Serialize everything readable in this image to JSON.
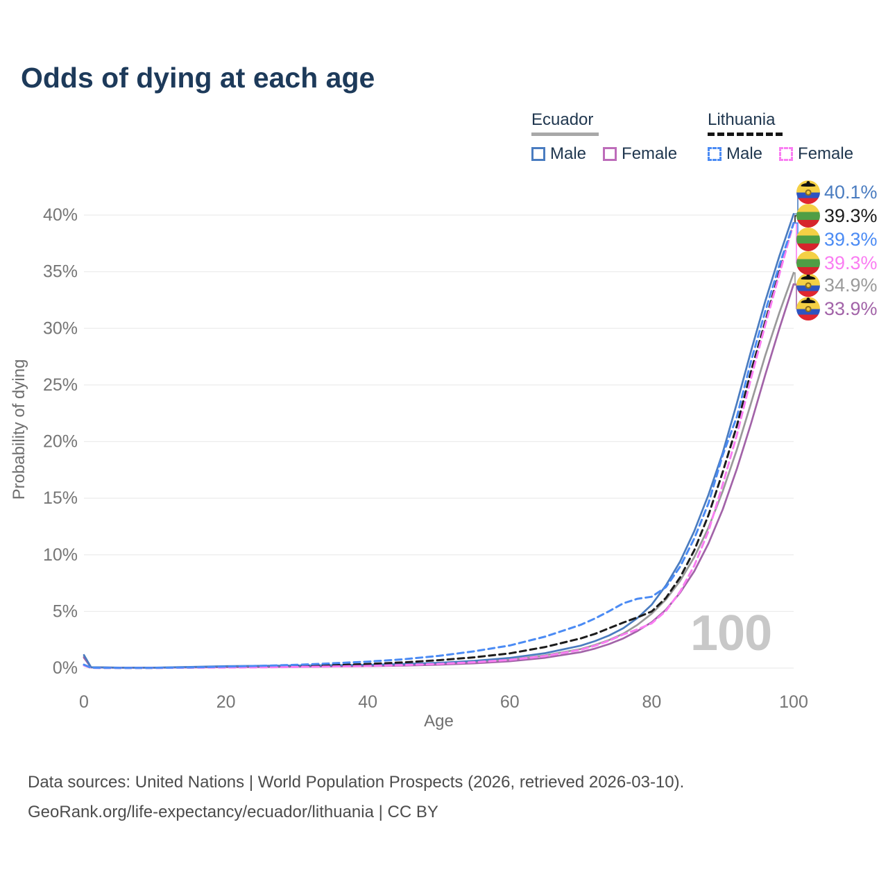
{
  "title": "Odds of dying at each age",
  "legend": {
    "groups": [
      {
        "country": "Ecuador",
        "line_style": "solid",
        "underline_color": "#a8a8a8",
        "items": [
          {
            "label": "Male",
            "color": "#4a7cc0"
          },
          {
            "label": "Female",
            "color": "#bd6cba"
          }
        ]
      },
      {
        "country": "Lithuania",
        "line_style": "dashed",
        "underline_color": "#141414",
        "items": [
          {
            "label": "Male",
            "color": "#4b8bf4"
          },
          {
            "label": "Female",
            "color": "#fa7df2"
          }
        ]
      }
    ]
  },
  "watermark": "100",
  "sources": {
    "line1": "Data sources: United Nations | World Population Prospects (2026, retrieved 2026-03-10).",
    "line2": "GeoRank.org/life-expectancy/ecuador/lithuania | CC BY"
  },
  "chart_data": {
    "type": "line",
    "title": "Odds of dying at each age",
    "xlabel": "Age",
    "ylabel": "Probability of dying",
    "xlim": [
      0,
      100
    ],
    "ylim": [
      0,
      40
    ],
    "x_ticks": [
      0,
      20,
      40,
      60,
      80,
      100
    ],
    "y_ticks": [
      0,
      5,
      10,
      15,
      20,
      25,
      30,
      35,
      40
    ],
    "y_tick_suffix": "%",
    "grid": "horizontal",
    "legend_position": "top-right",
    "ages": [
      0,
      1,
      5,
      10,
      15,
      20,
      25,
      30,
      35,
      40,
      45,
      50,
      55,
      60,
      65,
      70,
      72,
      74,
      76,
      78,
      80,
      82,
      84,
      86,
      88,
      90,
      92,
      94,
      96,
      98,
      100
    ],
    "series": [
      {
        "name": "Ecuador Both sexes",
        "country": "Ecuador",
        "sex": "both",
        "color": "#9a9a9a",
        "dashed": false,
        "flag": "ec",
        "end_label": "34.9%",
        "end_value": 34.9,
        "label_color": "#9a9a9a",
        "values": [
          1.0,
          0.07,
          0.03,
          0.03,
          0.08,
          0.13,
          0.15,
          0.17,
          0.19,
          0.23,
          0.29,
          0.38,
          0.53,
          0.75,
          1.12,
          1.68,
          2.04,
          2.48,
          3.04,
          3.82,
          4.8,
          6.05,
          7.7,
          9.8,
          12.4,
          15.6,
          19.3,
          23.4,
          27.6,
          31.4,
          34.9
        ]
      },
      {
        "name": "Ecuador Female",
        "country": "Ecuador",
        "sex": "female",
        "color": "#a263a8",
        "dashed": false,
        "flag": "ec",
        "end_label": "33.9%",
        "end_value": 33.9,
        "label_color": "#a263a8",
        "values": [
          0.92,
          0.06,
          0.03,
          0.03,
          0.06,
          0.09,
          0.1,
          0.12,
          0.14,
          0.17,
          0.22,
          0.3,
          0.42,
          0.6,
          0.91,
          1.4,
          1.72,
          2.12,
          2.62,
          3.28,
          4.05,
          5.15,
          6.65,
          8.55,
          11.0,
          14.0,
          17.6,
          21.6,
          25.9,
          30.0,
          33.9
        ]
      },
      {
        "name": "Ecuador Male",
        "country": "Ecuador",
        "sex": "male",
        "color": "#4a7cc0",
        "dashed": false,
        "flag": "ec",
        "end_label": "40.1%",
        "end_value": 40.1,
        "label_color": "#4a7cc0",
        "values": [
          1.15,
          0.08,
          0.04,
          0.04,
          0.1,
          0.17,
          0.2,
          0.22,
          0.25,
          0.29,
          0.36,
          0.47,
          0.64,
          0.9,
          1.32,
          1.98,
          2.38,
          2.88,
          3.52,
          4.42,
          5.6,
          7.3,
          9.4,
          12.1,
          15.3,
          19.0,
          23.4,
          28.0,
          32.4,
          36.4,
          40.1
        ]
      },
      {
        "name": "Lithuania Both sexes",
        "country": "Lithuania",
        "sex": "both",
        "color": "#1c1c1c",
        "dashed": true,
        "flag": "lt",
        "end_label": "39.3%",
        "end_value": 39.3,
        "label_color": "#1c1c1c",
        "values": [
          0.27,
          0.03,
          0.02,
          0.02,
          0.05,
          0.09,
          0.13,
          0.18,
          0.26,
          0.36,
          0.5,
          0.7,
          0.95,
          1.3,
          1.86,
          2.62,
          3.02,
          3.52,
          4.02,
          4.48,
          5.0,
          6.2,
          8.0,
          10.4,
          13.5,
          17.3,
          21.4,
          26.2,
          30.6,
          35.0,
          39.3
        ]
      },
      {
        "name": "Lithuania Female",
        "country": "Lithuania",
        "sex": "female",
        "color": "#fa7df2",
        "dashed": true,
        "flag": "lt",
        "end_label": "39.3%",
        "end_value": 39.3,
        "label_color": "#fa7df2",
        "values": [
          0.24,
          0.02,
          0.015,
          0.015,
          0.035,
          0.05,
          0.07,
          0.1,
          0.14,
          0.19,
          0.27,
          0.37,
          0.52,
          0.72,
          1.06,
          1.62,
          1.97,
          2.42,
          2.97,
          3.42,
          3.95,
          5.05,
          6.75,
          9.05,
          12.1,
          16.2,
          20.6,
          25.6,
          30.3,
          34.8,
          39.3
        ]
      },
      {
        "name": "Lithuania Male",
        "country": "Lithuania",
        "sex": "male",
        "color": "#4b8bf4",
        "dashed": true,
        "flag": "lt",
        "end_label": "39.3%",
        "end_value": 39.3,
        "label_color": "#4b8bf4",
        "values": [
          0.3,
          0.03,
          0.02,
          0.02,
          0.06,
          0.13,
          0.2,
          0.29,
          0.42,
          0.57,
          0.78,
          1.08,
          1.48,
          2.0,
          2.78,
          3.82,
          4.38,
          5.02,
          5.72,
          6.12,
          6.3,
          7.15,
          8.95,
          11.45,
          14.55,
          18.8,
          22.2,
          27.1,
          31.5,
          35.6,
          39.3
        ]
      }
    ],
    "end_label_rows_y": {
      "40.1": 277,
      "39.3_both": 311,
      "39.3_male": 345,
      "39.3_female": 379,
      "34.9": 411,
      "33.9": 445
    }
  }
}
